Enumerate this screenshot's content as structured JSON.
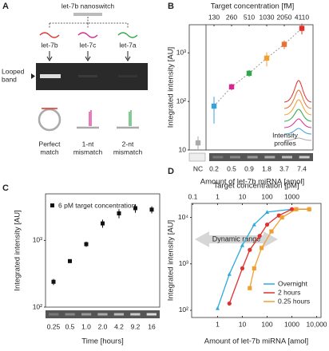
{
  "diagram": {
    "panel": "A",
    "title": "let-7b nanoswitch",
    "probes": [
      {
        "label": "let-7b",
        "color": "#e0312c"
      },
      {
        "label": "let-7c",
        "color": "#d6268f"
      },
      {
        "label": "let-7a",
        "color": "#2ea84a"
      }
    ],
    "gel_label": [
      "Looped",
      "band"
    ],
    "outcomes": [
      [
        "Perfect",
        "match"
      ],
      [
        "1-nt",
        "mismatch"
      ],
      [
        "2-nt",
        "mismatch"
      ]
    ]
  },
  "chart_data": [
    {
      "type": "scatter",
      "panel": "B",
      "yscale": "log",
      "top_axis_label": "Target concentration [fM]",
      "top_categories": [
        null,
        "130",
        "260",
        "510",
        "1030",
        "2050",
        "4110"
      ],
      "categories": [
        "NC",
        "0.2",
        "0.5",
        "0.9",
        "1.8",
        "3.7",
        "7.4"
      ],
      "values": [
        14,
        80,
        200,
        380,
        780,
        1500,
        3200
      ],
      "errors": [
        5,
        45,
        30,
        60,
        250,
        300,
        800
      ],
      "colors": [
        "#aaaaaa",
        "#3aa0dc",
        "#d6268f",
        "#2ea84a",
        "#f0a030",
        "#e87030",
        "#e0312c"
      ],
      "xlabel": "Amount of let-7b miRNA [amol]",
      "ylabel": "Integrated intensity [AU]",
      "annotation": [
        "Intensity",
        "profiles"
      ],
      "ylim": [
        10,
        3800
      ],
      "yticks": [
        10,
        {
          "value": 100,
          "label": "10²"
        },
        {
          "value": 1000,
          "label": "10³"
        }
      ]
    },
    {
      "type": "scatter",
      "panel": "C",
      "yscale": "log",
      "categories": [
        "0.25",
        "0.5",
        "1.0",
        "2.0",
        "4.2",
        "9.2",
        "16"
      ],
      "series": [
        {
          "name": "6 pM target concentration",
          "color": "#111111",
          "values": [
            240,
            490,
            880,
            1800,
            2550,
            3050,
            2900
          ],
          "errors": [
            25,
            30,
            80,
            250,
            400,
            450,
            350
          ]
        }
      ],
      "xlabel": "Time [hours]",
      "ylabel": "Integrated intensity [AU]",
      "ylim": [
        100,
        5000
      ],
      "yticks": [
        {
          "value": 100,
          "label": "10²"
        },
        {
          "value": 1000,
          "label": "10³"
        }
      ]
    },
    {
      "type": "line",
      "panel": "D",
      "xscale": "log",
      "yscale": "log",
      "series": [
        {
          "name": "Overnight",
          "color": "#2eaadc",
          "marker": "triangle",
          "x": [
            1,
            3,
            10,
            30,
            100,
            1000,
            5000
          ],
          "values": [
            110,
            600,
            2500,
            7000,
            13000,
            15000,
            15000
          ]
        },
        {
          "name": "2 hours",
          "color": "#e0312c",
          "marker": "circle",
          "x": [
            3,
            10,
            20,
            50,
            100,
            300,
            1000,
            5000
          ],
          "values": [
            140,
            800,
            2000,
            4000,
            7000,
            11000,
            15000,
            15000
          ]
        },
        {
          "name": "0.25 hours",
          "color": "#f0a030",
          "marker": "square",
          "x": [
            20,
            30,
            60,
            150,
            400,
            1500,
            5000
          ],
          "values": [
            300,
            800,
            2200,
            5000,
            10000,
            15000,
            15000
          ]
        }
      ],
      "top_axis_label": "Target concentration [pM]",
      "xlabel": "Amount of let-7b miRNA [amol]",
      "ylabel": "Integrated intensity [AU]",
      "annotation": "Dynamic range",
      "xlim": [
        0.09,
        15000
      ],
      "xticks": [
        1,
        10,
        100,
        1000,
        {
          "value": 10000,
          "label": "10,000"
        }
      ],
      "x2lim": [
        0.09,
        15000
      ],
      "x2ticks": [
        0.1,
        1,
        10,
        100,
        1000
      ],
      "ylim": [
        70,
        20000
      ],
      "yticks": [
        {
          "value": 100,
          "label": "10²"
        },
        {
          "value": 1000,
          "label": "10³"
        },
        {
          "value": 10000,
          "label": "10⁴"
        }
      ],
      "legend": "lower right"
    }
  ]
}
